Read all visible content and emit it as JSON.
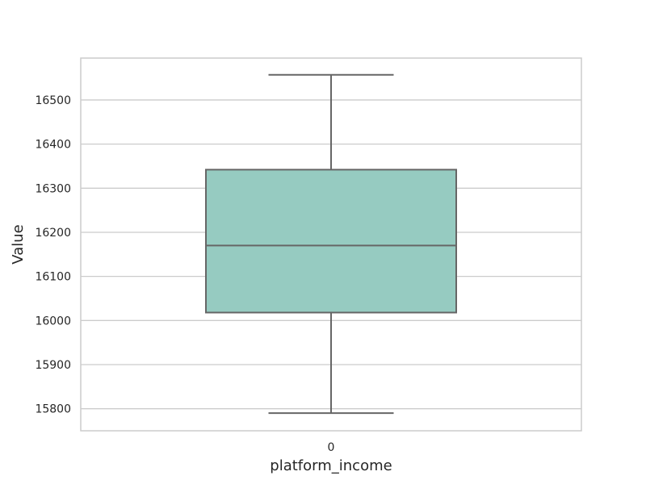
{
  "chart_data": {
    "type": "box",
    "title": "",
    "xlabel": "platform_income",
    "ylabel": "Value",
    "categories": [
      "0"
    ],
    "boxes": [
      {
        "category": "0",
        "whisker_low": 15790,
        "q1": 16018,
        "median": 16170,
        "q3": 16342,
        "whisker_high": 16557
      }
    ],
    "ylim": [
      15750,
      16595
    ],
    "yticks": [
      15800,
      15900,
      16000,
      16100,
      16200,
      16300,
      16400,
      16500
    ],
    "ytick_labels": [
      "15800",
      "15900",
      "16000",
      "16100",
      "16200",
      "16300",
      "16400",
      "16500"
    ],
    "grid": true,
    "box_color": "#96cbc1",
    "line_color": "#666666",
    "grid_color": "#cccccc",
    "frame_color": "#cccccc"
  }
}
